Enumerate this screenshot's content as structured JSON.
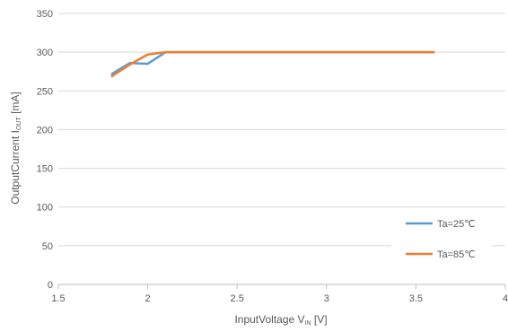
{
  "chart_data": {
    "type": "line",
    "xlabel": {
      "main": "InputVoltage V",
      "sub": "IN",
      "unit": " [V]"
    },
    "ylabel": {
      "main": "OutputCurrent I",
      "sub": "OUT",
      "unit": " [mA]"
    },
    "xlim": [
      1.5,
      4
    ],
    "ylim": [
      0,
      350
    ],
    "xticks": [
      1.5,
      2,
      2.5,
      3,
      3.5,
      4
    ],
    "xtick_labels": [
      "1.5",
      "2",
      "2.5",
      "3",
      "3.5",
      "4"
    ],
    "yticks": [
      0,
      50,
      100,
      150,
      200,
      250,
      300,
      350
    ],
    "ytick_labels": [
      "0",
      "50",
      "100",
      "150",
      "200",
      "250",
      "300",
      "350"
    ],
    "grid": "horizontal",
    "legend_position": "bottom-right",
    "series": [
      {
        "name": "Ta=25℃",
        "color": "#5b9bd5",
        "x": [
          1.8,
          1.9,
          2.0,
          2.1,
          2.2,
          2.5,
          3.0,
          3.5,
          3.6
        ],
        "y": [
          272,
          286,
          285,
          300,
          300,
          300,
          300,
          300,
          300
        ]
      },
      {
        "name": "Ta=85℃",
        "color": "#ed7d31",
        "x": [
          1.8,
          1.9,
          2.0,
          2.1,
          2.2,
          2.5,
          3.0,
          3.5,
          3.6
        ],
        "y": [
          269,
          284,
          297,
          300,
          300,
          300,
          300,
          300,
          300
        ]
      }
    ]
  }
}
